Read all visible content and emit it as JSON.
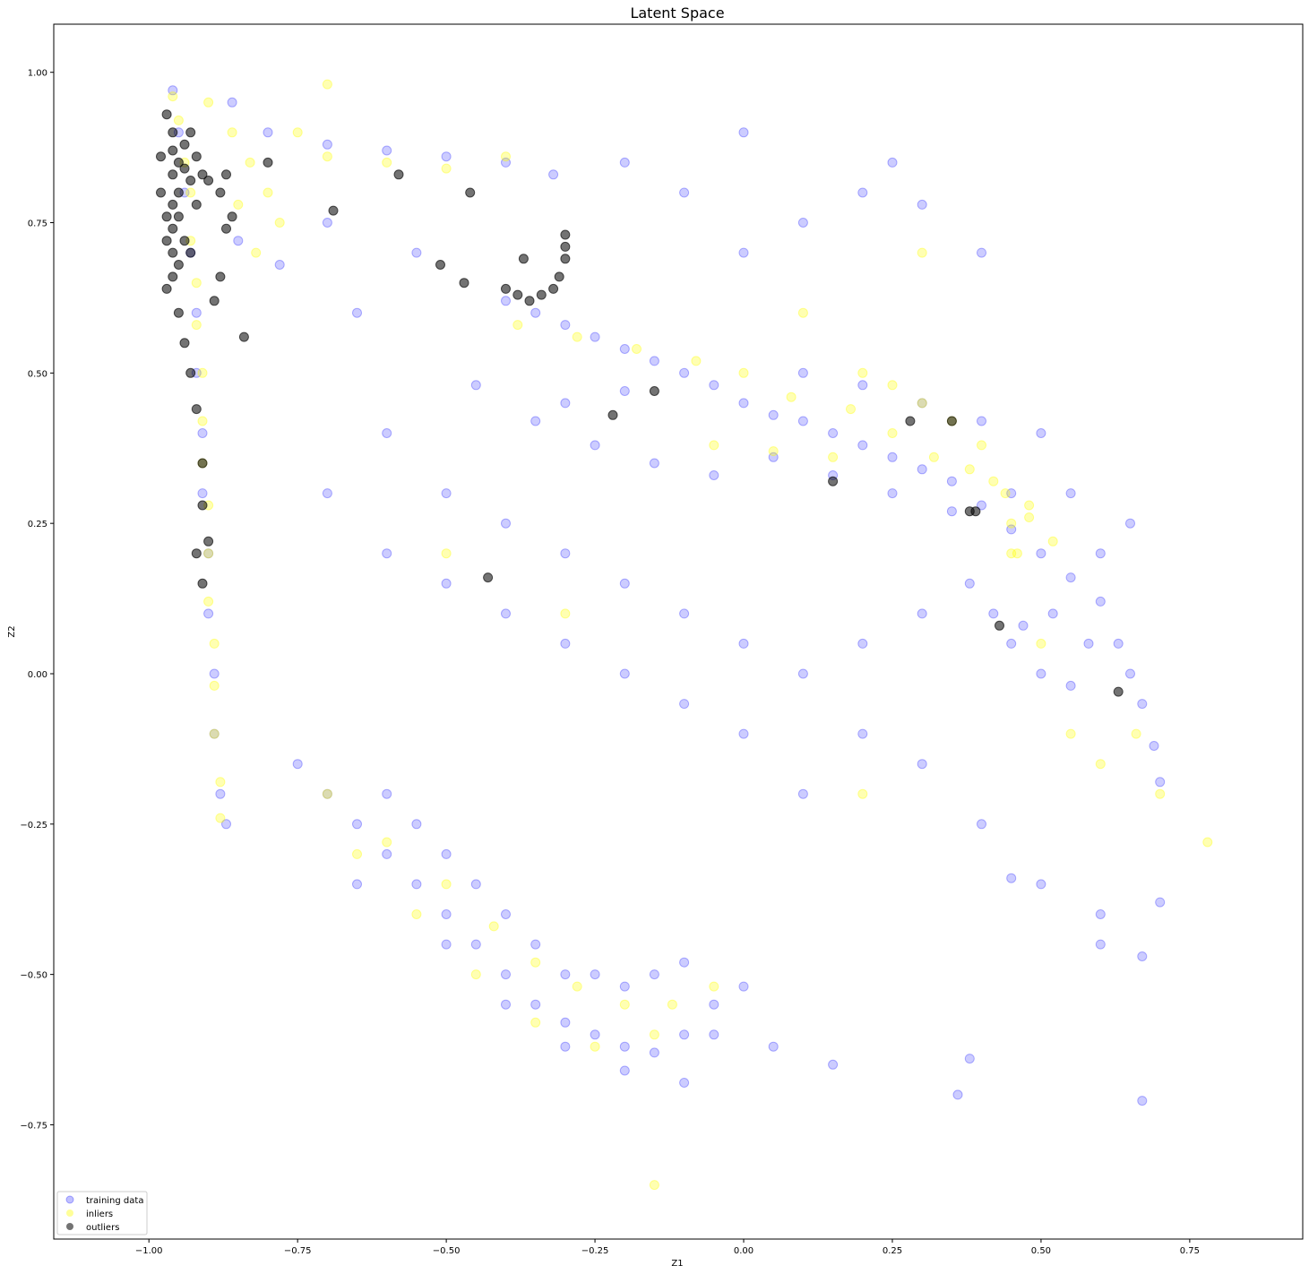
{
  "chart_data": {
    "type": "scatter",
    "title": "Latent Space",
    "xlabel": "Z1",
    "ylabel": "Z2",
    "xlim": [
      -1.16,
      0.94
    ],
    "ylim": [
      -0.94,
      1.08
    ],
    "xticks": [
      -1.0,
      -0.75,
      -0.5,
      -0.25,
      0.0,
      0.25,
      0.5,
      0.75
    ],
    "xtick_labels": [
      "−1.00",
      "−0.75",
      "−0.50",
      "−0.25",
      "0.00",
      "0.25",
      "0.50",
      "0.75"
    ],
    "yticks": [
      -0.75,
      -0.5,
      -0.25,
      0.0,
      0.25,
      0.5,
      0.75,
      1.0
    ],
    "ytick_labels": [
      "−0.75",
      "−0.50",
      "−0.25",
      "0.00",
      "0.25",
      "0.50",
      "0.75",
      "1.00"
    ],
    "grid": false,
    "legend_position": "lower-left",
    "series": [
      {
        "name": "training data",
        "color": "#0000ff",
        "alpha": 0.2,
        "points": [
          [
            -0.96,
            0.97
          ],
          [
            -0.95,
            0.9
          ],
          [
            -0.94,
            0.8
          ],
          [
            -0.93,
            0.7
          ],
          [
            -0.92,
            0.6
          ],
          [
            -0.92,
            0.5
          ],
          [
            -0.91,
            0.4
          ],
          [
            -0.91,
            0.3
          ],
          [
            -0.9,
            0.2
          ],
          [
            -0.9,
            0.1
          ],
          [
            -0.89,
            0.0
          ],
          [
            -0.89,
            -0.1
          ],
          [
            -0.88,
            -0.2
          ],
          [
            -0.87,
            -0.25
          ],
          [
            -0.86,
            0.95
          ],
          [
            -0.8,
            0.9
          ],
          [
            -0.7,
            0.88
          ],
          [
            -0.6,
            0.87
          ],
          [
            -0.5,
            0.86
          ],
          [
            -0.4,
            0.85
          ],
          [
            -0.32,
            0.83
          ],
          [
            -0.85,
            0.72
          ],
          [
            -0.78,
            0.68
          ],
          [
            -0.7,
            0.75
          ],
          [
            -0.65,
            0.6
          ],
          [
            -0.55,
            0.7
          ],
          [
            -0.4,
            0.62
          ],
          [
            -0.35,
            0.6
          ],
          [
            -0.3,
            0.58
          ],
          [
            -0.25,
            0.56
          ],
          [
            -0.2,
            0.54
          ],
          [
            -0.15,
            0.52
          ],
          [
            -0.1,
            0.5
          ],
          [
            -0.05,
            0.48
          ],
          [
            0.0,
            0.45
          ],
          [
            0.05,
            0.43
          ],
          [
            0.1,
            0.42
          ],
          [
            0.15,
            0.4
          ],
          [
            0.2,
            0.38
          ],
          [
            0.25,
            0.36
          ],
          [
            0.3,
            0.34
          ],
          [
            0.35,
            0.32
          ],
          [
            0.4,
            0.28
          ],
          [
            0.45,
            0.24
          ],
          [
            0.5,
            0.2
          ],
          [
            0.55,
            0.16
          ],
          [
            0.6,
            0.12
          ],
          [
            0.63,
            0.05
          ],
          [
            0.65,
            0.0
          ],
          [
            0.67,
            -0.05
          ],
          [
            0.69,
            -0.12
          ],
          [
            0.7,
            -0.18
          ],
          [
            -0.45,
            0.48
          ],
          [
            -0.35,
            0.42
          ],
          [
            -0.25,
            0.38
          ],
          [
            -0.15,
            0.35
          ],
          [
            -0.05,
            0.33
          ],
          [
            0.05,
            0.36
          ],
          [
            0.15,
            0.33
          ],
          [
            0.25,
            0.3
          ],
          [
            0.35,
            0.27
          ],
          [
            0.45,
            0.3
          ],
          [
            0.4,
            0.42
          ],
          [
            0.3,
            0.45
          ],
          [
            0.2,
            0.48
          ],
          [
            0.1,
            0.5
          ],
          [
            -0.3,
            0.45
          ],
          [
            -0.2,
            0.47
          ],
          [
            0.42,
            0.1
          ],
          [
            0.45,
            0.05
          ],
          [
            0.5,
            0.0
          ],
          [
            0.55,
            -0.02
          ],
          [
            0.47,
            0.08
          ],
          [
            0.38,
            0.15
          ],
          [
            0.52,
            0.1
          ],
          [
            0.58,
            0.05
          ],
          [
            0.6,
            0.2
          ],
          [
            0.65,
            0.25
          ],
          [
            0.55,
            0.3
          ],
          [
            0.5,
            0.4
          ],
          [
            -0.75,
            -0.15
          ],
          [
            -0.7,
            -0.2
          ],
          [
            -0.65,
            -0.25
          ],
          [
            -0.6,
            -0.3
          ],
          [
            -0.55,
            -0.35
          ],
          [
            -0.5,
            -0.4
          ],
          [
            -0.45,
            -0.45
          ],
          [
            -0.4,
            -0.5
          ],
          [
            -0.35,
            -0.55
          ],
          [
            -0.3,
            -0.58
          ],
          [
            -0.25,
            -0.6
          ],
          [
            -0.2,
            -0.62
          ],
          [
            -0.15,
            -0.63
          ],
          [
            -0.1,
            -0.6
          ],
          [
            -0.05,
            -0.55
          ],
          [
            0.0,
            -0.52
          ],
          [
            -0.6,
            -0.2
          ],
          [
            -0.55,
            -0.25
          ],
          [
            -0.5,
            -0.3
          ],
          [
            -0.45,
            -0.35
          ],
          [
            -0.4,
            -0.4
          ],
          [
            -0.35,
            -0.45
          ],
          [
            -0.3,
            -0.5
          ],
          [
            -0.25,
            -0.5
          ],
          [
            -0.2,
            -0.52
          ],
          [
            -0.15,
            -0.5
          ],
          [
            -0.1,
            -0.48
          ],
          [
            -0.65,
            -0.35
          ],
          [
            -0.5,
            -0.45
          ],
          [
            -0.4,
            -0.55
          ],
          [
            -0.3,
            -0.62
          ],
          [
            -0.2,
            -0.66
          ],
          [
            -0.7,
            0.3
          ],
          [
            -0.6,
            0.2
          ],
          [
            -0.5,
            0.15
          ],
          [
            -0.4,
            0.1
          ],
          [
            -0.3,
            0.05
          ],
          [
            -0.2,
            0.0
          ],
          [
            -0.1,
            -0.05
          ],
          [
            0.0,
            -0.1
          ],
          [
            0.1,
            -0.2
          ],
          [
            0.2,
            -0.1
          ],
          [
            0.3,
            -0.15
          ],
          [
            0.4,
            -0.25
          ],
          [
            0.5,
            -0.35
          ],
          [
            0.6,
            -0.4
          ],
          [
            0.67,
            -0.47
          ],
          [
            -0.6,
            0.4
          ],
          [
            -0.5,
            0.3
          ],
          [
            -0.4,
            0.25
          ],
          [
            -0.3,
            0.2
          ],
          [
            -0.2,
            0.15
          ],
          [
            -0.1,
            0.1
          ],
          [
            0.0,
            0.05
          ],
          [
            0.1,
            0.0
          ],
          [
            0.2,
            0.05
          ],
          [
            0.3,
            0.1
          ],
          [
            0.0,
            0.7
          ],
          [
            0.1,
            0.75
          ],
          [
            0.2,
            0.8
          ],
          [
            0.25,
            0.85
          ],
          [
            0.3,
            0.78
          ],
          [
            0.4,
            0.7
          ],
          [
            -0.1,
            0.8
          ],
          [
            -0.2,
            0.85
          ],
          [
            0.0,
            0.9
          ],
          [
            0.38,
            -0.64
          ],
          [
            0.36,
            -0.7
          ],
          [
            0.67,
            -0.71
          ],
          [
            0.15,
            -0.65
          ],
          [
            0.7,
            -0.38
          ],
          [
            0.6,
            -0.45
          ],
          [
            0.45,
            -0.34
          ],
          [
            -0.1,
            -0.68
          ],
          [
            -0.05,
            -0.6
          ],
          [
            0.05,
            -0.62
          ]
        ]
      },
      {
        "name": "inliers",
        "color": "#ffff00",
        "alpha": 0.3,
        "points": [
          [
            -0.96,
            0.96
          ],
          [
            -0.95,
            0.92
          ],
          [
            -0.94,
            0.85
          ],
          [
            -0.93,
            0.8
          ],
          [
            -0.93,
            0.72
          ],
          [
            -0.92,
            0.65
          ],
          [
            -0.92,
            0.58
          ],
          [
            -0.91,
            0.5
          ],
          [
            -0.91,
            0.42
          ],
          [
            -0.91,
            0.35
          ],
          [
            -0.9,
            0.28
          ],
          [
            -0.9,
            0.2
          ],
          [
            -0.9,
            0.12
          ],
          [
            -0.89,
            0.05
          ],
          [
            -0.89,
            -0.02
          ],
          [
            -0.89,
            -0.1
          ],
          [
            -0.88,
            -0.18
          ],
          [
            -0.88,
            -0.24
          ],
          [
            -0.9,
            0.95
          ],
          [
            -0.86,
            0.9
          ],
          [
            -0.83,
            0.85
          ],
          [
            -0.8,
            0.8
          ],
          [
            -0.78,
            0.75
          ],
          [
            -0.85,
            0.78
          ],
          [
            -0.82,
            0.7
          ],
          [
            -0.75,
            0.9
          ],
          [
            -0.7,
            0.86
          ],
          [
            -0.6,
            0.85
          ],
          [
            -0.5,
            0.84
          ],
          [
            -0.4,
            0.86
          ],
          [
            -0.7,
            0.98
          ],
          [
            -0.38,
            0.58
          ],
          [
            -0.28,
            0.56
          ],
          [
            -0.18,
            0.54
          ],
          [
            -0.08,
            0.52
          ],
          [
            0.0,
            0.5
          ],
          [
            0.08,
            0.46
          ],
          [
            0.18,
            0.44
          ],
          [
            0.25,
            0.4
          ],
          [
            0.32,
            0.36
          ],
          [
            0.38,
            0.34
          ],
          [
            0.44,
            0.3
          ],
          [
            0.48,
            0.26
          ],
          [
            0.52,
            0.22
          ],
          [
            0.45,
            0.2
          ],
          [
            0.48,
            0.28
          ],
          [
            0.2,
            0.5
          ],
          [
            0.25,
            0.48
          ],
          [
            0.3,
            0.45
          ],
          [
            0.35,
            0.42
          ],
          [
            0.4,
            0.38
          ],
          [
            0.42,
            0.32
          ],
          [
            0.45,
            0.25
          ],
          [
            0.46,
            0.2
          ],
          [
            -0.05,
            0.38
          ],
          [
            0.05,
            0.37
          ],
          [
            0.15,
            0.36
          ],
          [
            -0.7,
            -0.2
          ],
          [
            -0.6,
            -0.28
          ],
          [
            -0.5,
            -0.35
          ],
          [
            -0.42,
            -0.42
          ],
          [
            -0.35,
            -0.48
          ],
          [
            -0.28,
            -0.52
          ],
          [
            -0.2,
            -0.55
          ],
          [
            -0.12,
            -0.55
          ],
          [
            -0.05,
            -0.52
          ],
          [
            -0.55,
            -0.4
          ],
          [
            -0.45,
            -0.5
          ],
          [
            -0.35,
            -0.58
          ],
          [
            -0.25,
            -0.62
          ],
          [
            -0.15,
            -0.6
          ],
          [
            -0.65,
            -0.3
          ],
          [
            -0.5,
            0.2
          ],
          [
            -0.3,
            0.1
          ],
          [
            0.1,
            0.6
          ],
          [
            0.3,
            0.7
          ],
          [
            0.5,
            0.05
          ],
          [
            0.6,
            -0.15
          ],
          [
            0.7,
            -0.2
          ],
          [
            0.78,
            -0.28
          ],
          [
            0.2,
            -0.2
          ],
          [
            -0.15,
            -0.85
          ],
          [
            0.55,
            -0.1
          ],
          [
            0.66,
            -0.1
          ]
        ]
      },
      {
        "name": "outliers",
        "color": "#000000",
        "alpha": 0.55,
        "points": [
          [
            -0.97,
            0.93
          ],
          [
            -0.96,
            0.9
          ],
          [
            -0.96,
            0.87
          ],
          [
            -0.95,
            0.85
          ],
          [
            -0.96,
            0.83
          ],
          [
            -0.95,
            0.8
          ],
          [
            -0.96,
            0.78
          ],
          [
            -0.95,
            0.76
          ],
          [
            -0.96,
            0.74
          ],
          [
            -0.97,
            0.72
          ],
          [
            -0.96,
            0.7
          ],
          [
            -0.95,
            0.68
          ],
          [
            -0.96,
            0.66
          ],
          [
            -0.97,
            0.64
          ],
          [
            -0.94,
            0.88
          ],
          [
            -0.94,
            0.84
          ],
          [
            -0.93,
            0.9
          ],
          [
            -0.93,
            0.82
          ],
          [
            -0.92,
            0.86
          ],
          [
            -0.98,
            0.86
          ],
          [
            -0.98,
            0.8
          ],
          [
            -0.97,
            0.76
          ],
          [
            -0.94,
            0.72
          ],
          [
            -0.93,
            0.7
          ],
          [
            -0.92,
            0.78
          ],
          [
            -0.91,
            0.83
          ],
          [
            -0.9,
            0.82
          ],
          [
            -0.88,
            0.8
          ],
          [
            -0.87,
            0.83
          ],
          [
            -0.95,
            0.6
          ],
          [
            -0.94,
            0.55
          ],
          [
            -0.93,
            0.5
          ],
          [
            -0.92,
            0.44
          ],
          [
            -0.91,
            0.35
          ],
          [
            -0.91,
            0.28
          ],
          [
            -0.91,
            0.15
          ],
          [
            -0.92,
            0.2
          ],
          [
            -0.9,
            0.22
          ],
          [
            -0.89,
            0.62
          ],
          [
            -0.88,
            0.66
          ],
          [
            -0.87,
            0.74
          ],
          [
            -0.86,
            0.76
          ],
          [
            -0.8,
            0.85
          ],
          [
            -0.58,
            0.83
          ],
          [
            -0.51,
            0.68
          ],
          [
            -0.46,
            0.8
          ],
          [
            -0.69,
            0.77
          ],
          [
            -0.84,
            0.56
          ],
          [
            -0.3,
            0.73
          ],
          [
            -0.3,
            0.71
          ],
          [
            -0.3,
            0.69
          ],
          [
            -0.31,
            0.66
          ],
          [
            -0.32,
            0.64
          ],
          [
            -0.34,
            0.63
          ],
          [
            -0.36,
            0.62
          ],
          [
            -0.38,
            0.63
          ],
          [
            -0.4,
            0.64
          ],
          [
            -0.37,
            0.69
          ],
          [
            -0.47,
            0.65
          ],
          [
            -0.15,
            0.47
          ],
          [
            -0.22,
            0.43
          ],
          [
            0.15,
            0.32
          ],
          [
            0.28,
            0.42
          ],
          [
            0.35,
            0.42
          ],
          [
            0.38,
            0.27
          ],
          [
            0.39,
            0.27
          ],
          [
            0.43,
            0.08
          ],
          [
            0.63,
            -0.03
          ],
          [
            -0.43,
            0.16
          ]
        ]
      }
    ]
  }
}
